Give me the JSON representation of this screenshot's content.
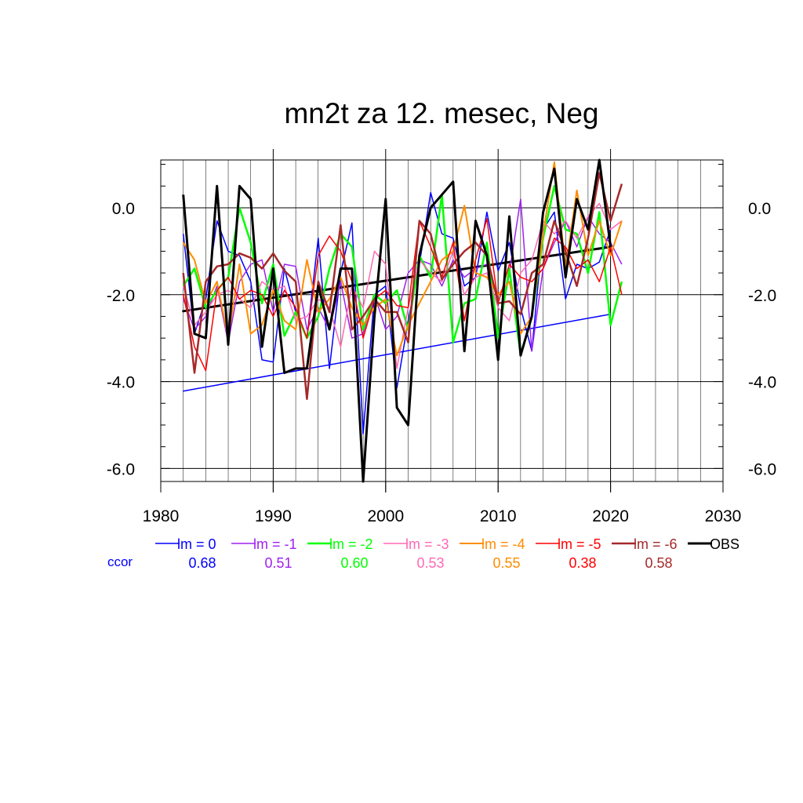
{
  "chart_data": {
    "type": "line",
    "title": "mn2t za 12. mesec, Neg",
    "xlabel": "",
    "ylabel": "",
    "xlim": [
      1980,
      2030
    ],
    "ylim": [
      -6.3,
      1.1
    ],
    "x_ticks": [
      1980,
      1990,
      2000,
      2010,
      2020,
      2030
    ],
    "x_tick_labels": [
      "1980",
      "1990",
      "2000",
      "2010",
      "2020",
      "2030"
    ],
    "y_ticks": [
      0,
      -2,
      -4,
      -6
    ],
    "y_tick_labels": [
      "0.0",
      "-2.0",
      "-4.0",
      "-6.0"
    ],
    "grid": true,
    "legend_position": "bottom",
    "ccor_label": "ccor",
    "x": [
      1982,
      1983,
      1984,
      1985,
      1986,
      1987,
      1988,
      1989,
      1990,
      1991,
      1992,
      1993,
      1994,
      1995,
      1996,
      1997,
      1998,
      1999,
      2000,
      2001,
      2002,
      2003,
      2004,
      2005,
      2006,
      2007,
      2008,
      2009,
      2010,
      2011,
      2012,
      2013,
      2014,
      2015,
      2016,
      2017,
      2018,
      2019,
      2020,
      2021
    ],
    "series": [
      {
        "name": "lm = 0",
        "color": "#0000ff",
        "width": 1.5,
        "ccor": "0.68",
        "values": [
          -0.6,
          -2.9,
          -2.1,
          -0.3,
          -1.0,
          -1.1,
          -1.7,
          -3.5,
          -3.55,
          -1.4,
          -2.4,
          -3.0,
          -0.7,
          -3.7,
          -1.5,
          -0.35,
          -5.2,
          -2.0,
          -1.8,
          -4.15,
          -2.6,
          -1.3,
          0.35,
          -0.6,
          -0.7,
          -1.8,
          -1.6,
          -0.1,
          -1.45,
          -0.8,
          -2.3,
          -3.3,
          -0.5,
          -0.1,
          -2.1,
          -1.3,
          -1.4,
          -1.25,
          -0.5,
          null
        ]
      },
      {
        "name": "lm = -1",
        "color": "#a020f0",
        "width": 1.5,
        "ccor": "0.51",
        "values": [
          -2.1,
          -2.8,
          -2.5,
          -1.8,
          -3.1,
          -1.7,
          -1.3,
          -1.2,
          -2.4,
          -1.3,
          -1.35,
          -2.8,
          -2.3,
          -2.8,
          -1.7,
          -3.0,
          -2.9,
          -2.0,
          -2.8,
          -2.5,
          -1.5,
          -1.2,
          -1.3,
          -1.8,
          -1.2,
          -1.6,
          -1.4,
          -1.3,
          -3.0,
          -1.5,
          0.2,
          -3.3,
          -1.4,
          -0.8,
          -0.3,
          -0.9,
          -0.2,
          -0.6,
          -0.8,
          -1.3
        ]
      },
      {
        "name": "lm = -2",
        "color": "#00ff00",
        "width": 2.5,
        "ccor": "0.60",
        "values": [
          -1.8,
          -1.4,
          -2.3,
          -1.9,
          -1.6,
          0.0,
          -0.8,
          -2.2,
          -1.3,
          -2.95,
          -2.4,
          -3.0,
          -2.5,
          -1.4,
          -0.6,
          -0.9,
          -2.8,
          -2.0,
          -2.2,
          -1.9,
          -2.8,
          -1.1,
          -1.6,
          0.3,
          -3.1,
          -2.2,
          -2.1,
          -0.8,
          -3.0,
          -1.4,
          -3.4,
          -2.5,
          -0.7,
          0.5,
          -0.5,
          -0.6,
          -1.5,
          -0.1,
          -2.7,
          -1.7
        ]
      },
      {
        "name": "lm = -3",
        "color": "#ff69b4",
        "width": 1.5,
        "ccor": "0.53",
        "values": [
          -1.8,
          -2.7,
          -2.4,
          -2.0,
          -1.9,
          -2.1,
          -2.3,
          -1.7,
          -1.9,
          -1.8,
          -2.6,
          -2.5,
          -2.1,
          -2.3,
          -3.2,
          -1.8,
          -2.3,
          -1.0,
          -1.3,
          -3.7,
          -2.3,
          -1.2,
          -1.5,
          -1.7,
          -1.0,
          -2.0,
          -1.6,
          -1.5,
          -2.3,
          -2.6,
          -1.5,
          -1.2,
          -0.3,
          -0.6,
          -0.3,
          -0.7,
          -0.2,
          0.1,
          -0.5,
          -0.3
        ]
      },
      {
        "name": "lm = -4",
        "color": "#ff8c00",
        "width": 2,
        "ccor": "0.55",
        "values": [
          -0.8,
          -1.2,
          -2.2,
          -1.7,
          -3.0,
          -1.3,
          -2.9,
          -2.7,
          -1.9,
          -2.6,
          -2.8,
          -1.2,
          -2.4,
          -2.1,
          -1.6,
          -2.3,
          -2.7,
          -2.3,
          -2.1,
          -3.4,
          -2.7,
          -2.2,
          -1.7,
          -1.2,
          -1.0,
          0.05,
          -1.5,
          -1.6,
          -2.0,
          -1.7,
          -2.9,
          -2.5,
          -0.6,
          1.05,
          -1.4,
          0.4,
          -1.1,
          -0.3,
          -1.1,
          -0.3
        ]
      },
      {
        "name": "lm = -5",
        "color": "#ff0000",
        "width": 1.5,
        "ccor": "0.38",
        "values": [
          -2.0,
          -3.2,
          -3.75,
          -1.9,
          -1.6,
          -2.1,
          -1.9,
          -2.0,
          -2.5,
          -1.9,
          -2.3,
          -3.0,
          -1.1,
          -0.65,
          -1.0,
          -1.7,
          -3.0,
          -2.1,
          -1.9,
          -2.25,
          -2.3,
          -0.3,
          -0.9,
          -1.6,
          -0.8,
          -2.6,
          -1.2,
          -0.25,
          -2.2,
          -1.3,
          -1.6,
          -1.7,
          -1.4,
          -0.7,
          -0.9,
          -1.4,
          -1.2,
          -1.7,
          -0.9,
          -2.0
        ]
      },
      {
        "name": "lm = -6",
        "color": "#a52a2a",
        "width": 2.5,
        "ccor": "0.58",
        "values": [
          -1.5,
          -3.8,
          -1.7,
          -1.35,
          -1.3,
          -1.05,
          -1.15,
          -1.4,
          -1.05,
          -1.45,
          -1.7,
          -4.4,
          -1.7,
          -2.4,
          -0.4,
          -2.8,
          -2.5,
          -2.1,
          -2.4,
          -2.4,
          -3.1,
          -0.3,
          -0.6,
          -1.65,
          -1.3,
          -1.0,
          -0.8,
          -1.1,
          -2.2,
          -2.15,
          -2.45,
          -1.5,
          -1.3,
          -0.3,
          -1.0,
          -1.8,
          -0.7,
          0.8,
          -0.3,
          0.55
        ]
      },
      {
        "name": "OBS",
        "color": "#000000",
        "width": 3,
        "ccor": "",
        "values": [
          0.3,
          -2.9,
          -3.0,
          0.5,
          -3.15,
          0.5,
          0.2,
          -3.2,
          -1.4,
          -3.8,
          -3.7,
          -3.7,
          -1.8,
          -2.8,
          -1.4,
          -1.4,
          -6.3,
          -2.5,
          0.2,
          -4.6,
          -5.0,
          -1.1,
          0.0,
          0.3,
          0.6,
          -3.3,
          -0.3,
          -1.1,
          -3.5,
          -0.2,
          -3.4,
          -2.5,
          -0.1,
          0.9,
          -1.6,
          0.2,
          -0.5,
          1.1,
          -0.9,
          null
        ]
      }
    ],
    "trend_lines": [
      {
        "series": "lm = 0",
        "color": "#0000ff",
        "width": 1.5,
        "x": [
          1982,
          2020
        ],
        "y": [
          -4.22,
          -2.45
        ]
      },
      {
        "series": "OBS",
        "color": "#000000",
        "width": 3,
        "x": [
          1982,
          2020
        ],
        "y": [
          -2.38,
          -0.9
        ]
      }
    ]
  }
}
